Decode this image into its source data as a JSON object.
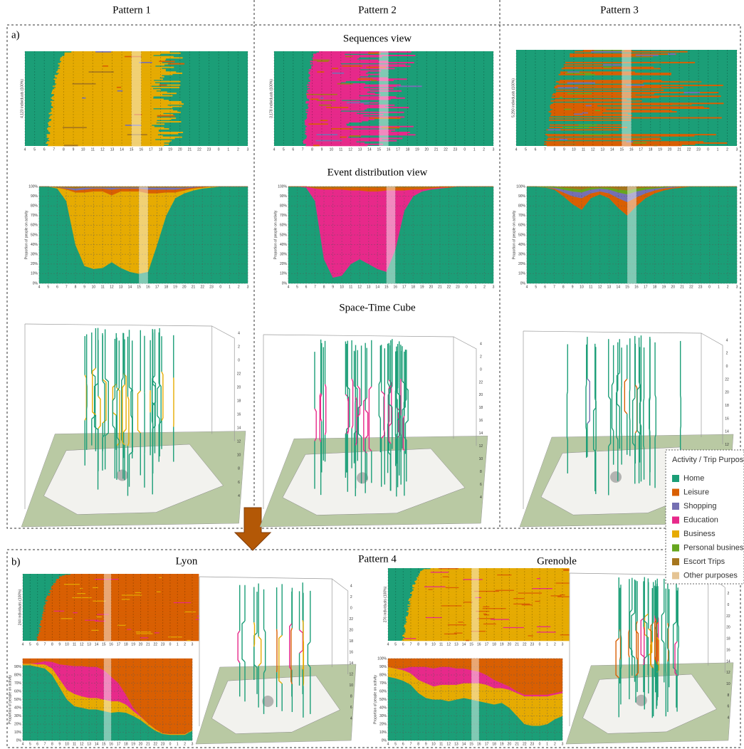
{
  "columns": [
    "Pattern 1",
    "Pattern 2",
    "Pattern 3"
  ],
  "panel_a": {
    "label": "a)",
    "views": [
      "Sequences view",
      "Event distribution view",
      "Space-Time Cube"
    ]
  },
  "panel_b": {
    "label": "b)",
    "title": "Pattern 4",
    "cities": [
      "Lyon",
      "Grenoble"
    ]
  },
  "sequences": [
    {
      "ylabel": "4,120 individuals (100%)"
    },
    {
      "ylabel": "3,178 individuals (100%)"
    },
    {
      "ylabel": "5,290 individuals (100%)"
    },
    {
      "ylabel": "244 individuals (100%)"
    },
    {
      "ylabel": "276 individuals (100%)"
    }
  ],
  "cube_time_ticks": [
    4,
    2,
    0,
    22,
    20,
    18,
    16,
    14,
    12,
    10,
    8,
    6,
    4
  ],
  "legend": {
    "title": "Activity / Trip Purpose",
    "items": [
      {
        "name": "Home",
        "color": "#1b9e77"
      },
      {
        "name": "Leisure",
        "color": "#d95f02"
      },
      {
        "name": "Shopping",
        "color": "#7570b3"
      },
      {
        "name": "Education",
        "color": "#e7298a"
      },
      {
        "name": "Business",
        "color": "#e6ab02"
      },
      {
        "name": "Personal business",
        "color": "#66a61e"
      },
      {
        "name": "Escort Trips",
        "color": "#a6761d"
      },
      {
        "name": "Other purposes",
        "color": "#e5c494"
      }
    ]
  },
  "chart_data": [
    {
      "type": "area",
      "ylabel": "Proportion of people on activity",
      "grid": true,
      "categories": [
        "4",
        "5",
        "6",
        "7",
        "8",
        "9",
        "10",
        "11",
        "12",
        "13",
        "14",
        "15",
        "16",
        "17",
        "18",
        "19",
        "20",
        "21",
        "22",
        "23",
        "0",
        "1",
        "2",
        "3"
      ],
      "ylim": [
        0,
        100
      ],
      "yticks": [
        {
          "value": 0,
          "label": "0%"
        },
        {
          "value": 10,
          "label": "10%"
        },
        {
          "value": 20,
          "label": "20%"
        },
        {
          "value": 30,
          "label": "30%"
        },
        {
          "value": 40,
          "label": "40%"
        },
        {
          "value": 50,
          "label": "50%"
        },
        {
          "value": 60,
          "label": "60%"
        },
        {
          "value": 70,
          "label": "70%"
        },
        {
          "value": 80,
          "label": "80%"
        },
        {
          "value": 90,
          "label": "90%"
        },
        {
          "value": 100,
          "label": "100%"
        }
      ],
      "series": [
        {
          "name": "Home",
          "color": "#1b9e77",
          "values": [
            100,
            100,
            98,
            85,
            40,
            18,
            15,
            16,
            22,
            16,
            12,
            10,
            12,
            40,
            70,
            88,
            93,
            96,
            98,
            99,
            100,
            100,
            100,
            100
          ]
        },
        {
          "name": "Business",
          "color": "#e6ab02",
          "values": [
            0,
            0,
            1,
            12,
            54,
            76,
            80,
            79,
            69,
            79,
            83,
            85,
            81,
            53,
            24,
            6,
            3,
            2,
            1,
            1,
            0,
            0,
            0,
            0
          ]
        },
        {
          "name": "Leisure",
          "color": "#d95f02",
          "values": [
            0,
            0,
            0,
            1,
            2,
            3,
            3,
            3,
            6,
            3,
            3,
            3,
            4,
            4,
            3,
            3,
            2,
            1,
            1,
            0,
            0,
            0,
            0,
            0
          ]
        },
        {
          "name": "Shopping",
          "color": "#7570b3",
          "values": [
            0,
            0,
            0,
            1,
            2,
            2,
            1,
            1,
            2,
            1,
            1,
            1,
            2,
            2,
            2,
            2,
            1,
            1,
            0,
            0,
            0,
            0,
            0,
            0
          ]
        },
        {
          "name": "Escort Trips",
          "color": "#a6761d",
          "values": [
            0,
            0,
            1,
            1,
            2,
            1,
            1,
            1,
            1,
            1,
            1,
            1,
            1,
            1,
            1,
            1,
            1,
            0,
            0,
            0,
            0,
            0,
            0,
            0
          ]
        }
      ]
    },
    {
      "type": "area",
      "ylabel": "Proportion of people on activity",
      "grid": true,
      "categories": [
        "4",
        "5",
        "6",
        "7",
        "8",
        "9",
        "10",
        "11",
        "12",
        "13",
        "14",
        "15",
        "16",
        "17",
        "18",
        "19",
        "20",
        "21",
        "22",
        "23",
        "0",
        "1",
        "2",
        "3"
      ],
      "ylim": [
        0,
        100
      ],
      "yticks": [
        {
          "value": 0,
          "label": "0%"
        },
        {
          "value": 10,
          "label": "10%"
        },
        {
          "value": 20,
          "label": "20%"
        },
        {
          "value": 30,
          "label": "30%"
        },
        {
          "value": 40,
          "label": "40%"
        },
        {
          "value": 50,
          "label": "50%"
        },
        {
          "value": 60,
          "label": "60%"
        },
        {
          "value": 70,
          "label": "70%"
        },
        {
          "value": 80,
          "label": "80%"
        },
        {
          "value": 90,
          "label": "90%"
        },
        {
          "value": 100,
          "label": "100%"
        }
      ],
      "series": [
        {
          "name": "Home",
          "color": "#1b9e77",
          "values": [
            100,
            100,
            99,
            85,
            25,
            6,
            8,
            20,
            25,
            20,
            15,
            12,
            35,
            75,
            90,
            95,
            97,
            98,
            99,
            100,
            100,
            100,
            100,
            100
          ]
        },
        {
          "name": "Education",
          "color": "#e7298a",
          "values": [
            0,
            0,
            1,
            13,
            72,
            91,
            89,
            76,
            71,
            75,
            80,
            84,
            61,
            21,
            7,
            2,
            1,
            1,
            0,
            0,
            0,
            0,
            0,
            0
          ]
        },
        {
          "name": "Leisure",
          "color": "#d95f02",
          "values": [
            0,
            0,
            0,
            1,
            2,
            2,
            2,
            3,
            3,
            4,
            4,
            3,
            3,
            3,
            2,
            2,
            1,
            1,
            1,
            0,
            0,
            0,
            0,
            0
          ]
        },
        {
          "name": "Escort Trips",
          "color": "#a6761d",
          "values": [
            0,
            0,
            0,
            1,
            1,
            1,
            1,
            1,
            1,
            1,
            1,
            1,
            1,
            1,
            1,
            1,
            1,
            0,
            0,
            0,
            0,
            0,
            0,
            0
          ]
        }
      ]
    },
    {
      "type": "area",
      "ylabel": "Proportion of people on activity",
      "grid": true,
      "categories": [
        "4",
        "5",
        "6",
        "7",
        "8",
        "9",
        "10",
        "11",
        "12",
        "13",
        "14",
        "15",
        "16",
        "17",
        "18",
        "19",
        "20",
        "21",
        "22",
        "23",
        "0",
        "1",
        "2",
        "3"
      ],
      "ylim": [
        0,
        100
      ],
      "yticks": [
        {
          "value": 0,
          "label": "0%"
        },
        {
          "value": 10,
          "label": "10%"
        },
        {
          "value": 20,
          "label": "20%"
        },
        {
          "value": 30,
          "label": "30%"
        },
        {
          "value": 40,
          "label": "40%"
        },
        {
          "value": 50,
          "label": "50%"
        },
        {
          "value": 60,
          "label": "60%"
        },
        {
          "value": 70,
          "label": "70%"
        },
        {
          "value": 80,
          "label": "80%"
        },
        {
          "value": 90,
          "label": "90%"
        },
        {
          "value": 100,
          "label": "100%"
        }
      ],
      "series": [
        {
          "name": "Home",
          "color": "#1b9e77",
          "values": [
            100,
            100,
            99,
            97,
            90,
            82,
            76,
            88,
            92,
            88,
            78,
            70,
            80,
            88,
            93,
            96,
            98,
            99,
            100,
            100,
            100,
            100,
            100,
            100
          ]
        },
        {
          "name": "Leisure",
          "color": "#d95f02",
          "values": [
            0,
            0,
            0,
            1,
            4,
            8,
            12,
            5,
            3,
            5,
            10,
            14,
            9,
            5,
            3,
            2,
            1,
            1,
            0,
            0,
            0,
            0,
            0,
            0
          ]
        },
        {
          "name": "Shopping",
          "color": "#7570b3",
          "values": [
            0,
            0,
            0,
            1,
            3,
            5,
            6,
            4,
            3,
            4,
            6,
            8,
            6,
            4,
            2,
            1,
            1,
            0,
            0,
            0,
            0,
            0,
            0,
            0
          ]
        },
        {
          "name": "Personal business",
          "color": "#66a61e",
          "values": [
            0,
            0,
            1,
            1,
            2,
            3,
            3,
            2,
            1,
            2,
            3,
            4,
            3,
            2,
            1,
            1,
            0,
            0,
            0,
            0,
            0,
            0,
            0,
            0
          ]
        },
        {
          "name": "Escort Trips",
          "color": "#a6761d",
          "values": [
            0,
            0,
            0,
            0,
            1,
            2,
            3,
            1,
            1,
            1,
            3,
            4,
            2,
            1,
            1,
            0,
            0,
            0,
            0,
            0,
            0,
            0,
            0,
            0
          ]
        }
      ]
    },
    {
      "type": "area",
      "ylabel": "Proportion of people on activity",
      "grid": true,
      "categories": [
        "4",
        "5",
        "6",
        "7",
        "8",
        "9",
        "10",
        "11",
        "12",
        "13",
        "14",
        "15",
        "16",
        "17",
        "18",
        "19",
        "20",
        "21",
        "22",
        "23",
        "0",
        "1",
        "2",
        "3"
      ],
      "ylim": [
        0,
        100
      ],
      "yticks": [
        {
          "value": 0,
          "label": "0%"
        },
        {
          "value": 10,
          "label": "10%"
        },
        {
          "value": 20,
          "label": "20%"
        },
        {
          "value": 30,
          "label": "30%"
        },
        {
          "value": 40,
          "label": "40%"
        },
        {
          "value": 50,
          "label": "50%"
        },
        {
          "value": 60,
          "label": "60%"
        },
        {
          "value": 70,
          "label": "70%"
        },
        {
          "value": 80,
          "label": "80%"
        },
        {
          "value": 90,
          "label": "90%"
        }
      ],
      "series": [
        {
          "name": "Home",
          "color": "#1b9e77",
          "values": [
            92,
            92,
            90,
            88,
            80,
            65,
            50,
            42,
            40,
            38,
            38,
            36,
            34,
            35,
            34,
            30,
            25,
            18,
            12,
            8,
            7,
            7,
            7,
            12
          ]
        },
        {
          "name": "Business",
          "color": "#e6ab02",
          "values": [
            2,
            2,
            3,
            5,
            8,
            10,
            12,
            15,
            14,
            14,
            14,
            14,
            14,
            13,
            10,
            6,
            4,
            3,
            2,
            1,
            1,
            1,
            1,
            1
          ]
        },
        {
          "name": "Education",
          "color": "#e7298a",
          "values": [
            0,
            0,
            2,
            4,
            8,
            18,
            30,
            34,
            37,
            38,
            38,
            36,
            30,
            22,
            12,
            4,
            1,
            0,
            0,
            0,
            0,
            0,
            0,
            0
          ]
        },
        {
          "name": "Leisure",
          "color": "#d95f02",
          "values": [
            6,
            6,
            5,
            3,
            4,
            7,
            8,
            9,
            9,
            10,
            10,
            14,
            22,
            30,
            44,
            60,
            70,
            79,
            86,
            91,
            92,
            92,
            92,
            87
          ]
        }
      ]
    },
    {
      "type": "area",
      "ylabel": "Proportion of people on activity",
      "grid": true,
      "categories": [
        "4",
        "5",
        "6",
        "7",
        "8",
        "9",
        "10",
        "11",
        "12",
        "13",
        "14",
        "15",
        "16",
        "17",
        "18",
        "19",
        "20",
        "21",
        "22",
        "23",
        "0",
        "1",
        "2",
        "3"
      ],
      "ylim": [
        0,
        100
      ],
      "yticks": [
        {
          "value": 0,
          "label": "0%"
        },
        {
          "value": 10,
          "label": "10%"
        },
        {
          "value": 20,
          "label": "20%"
        },
        {
          "value": 30,
          "label": "30%"
        },
        {
          "value": 40,
          "label": "40%"
        },
        {
          "value": 50,
          "label": "50%"
        },
        {
          "value": 60,
          "label": "60%"
        },
        {
          "value": 70,
          "label": "70%"
        },
        {
          "value": 80,
          "label": "80%"
        },
        {
          "value": 90,
          "label": "90%"
        },
        {
          "value": 100,
          "label": "100%"
        }
      ],
      "series": [
        {
          "name": "Home",
          "color": "#1b9e77",
          "values": [
            78,
            76,
            73,
            68,
            58,
            52,
            50,
            50,
            48,
            50,
            52,
            50,
            48,
            46,
            44,
            46,
            40,
            30,
            20,
            18,
            18,
            20,
            26,
            30
          ]
        },
        {
          "name": "Business",
          "color": "#e6ab02",
          "values": [
            12,
            12,
            13,
            14,
            16,
            18,
            16,
            18,
            20,
            18,
            18,
            20,
            22,
            22,
            20,
            18,
            22,
            28,
            34,
            36,
            36,
            34,
            30,
            28
          ]
        },
        {
          "name": "Education",
          "color": "#e7298a",
          "values": [
            0,
            0,
            2,
            8,
            16,
            20,
            22,
            22,
            22,
            20,
            18,
            16,
            14,
            12,
            10,
            6,
            4,
            2,
            2,
            2,
            2,
            2,
            2,
            2
          ]
        },
        {
          "name": "Leisure",
          "color": "#d95f02",
          "values": [
            10,
            12,
            12,
            10,
            10,
            10,
            12,
            10,
            10,
            12,
            12,
            14,
            16,
            20,
            26,
            30,
            34,
            40,
            44,
            44,
            44,
            44,
            42,
            40
          ]
        }
      ]
    }
  ]
}
